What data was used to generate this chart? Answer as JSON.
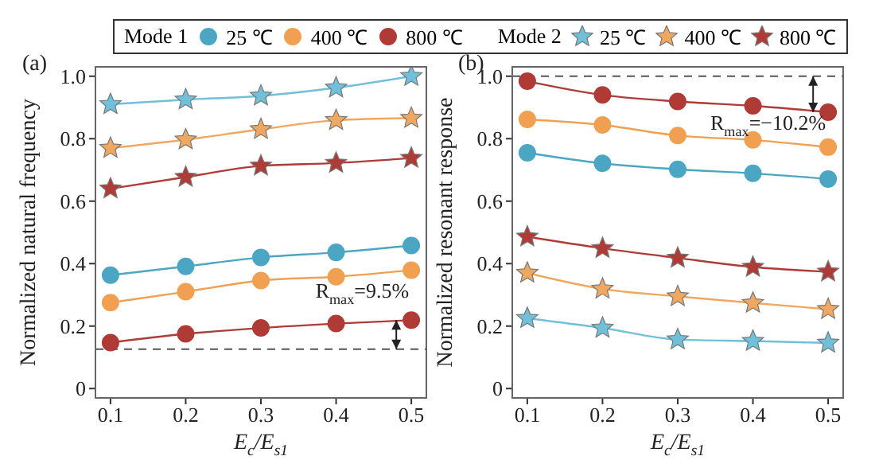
{
  "chart_data": [
    {
      "type": "line",
      "title": "(a)",
      "xlabel": "E$_{c}$/E$_{s1}$",
      "ylabel": "Normalized natural frequency",
      "legend": "top",
      "legend_title": "Mode 1",
      "marker": "circle",
      "xlim": [
        0.08,
        0.52
      ],
      "xticks": [
        0.1,
        0.2,
        0.3,
        0.4,
        0.5
      ],
      "ylim": [
        -0.03,
        1.03
      ],
      "yticks": [
        0,
        0.2,
        0.4,
        0.6,
        0.8,
        {
          "value": 1,
          "label": "1.0"
        }
      ],
      "x": [
        0.1,
        0.2,
        0.3,
        0.4,
        0.5
      ],
      "series": [
        {
          "name": "25 ℃",
          "color": "#4ba6c4",
          "values": [
            0.363,
            0.391,
            0.42,
            0.436,
            0.458
          ]
        },
        {
          "name": "400 ℃",
          "color": "#f0a050",
          "values": [
            0.275,
            0.31,
            0.346,
            0.358,
            0.379
          ]
        },
        {
          "name": "800 ℃",
          "color": "#b03a35",
          "values": [
            0.147,
            0.175,
            0.194,
            0.208,
            0.219
          ]
        },
        {
          "name": "25 ℃",
          "color": "#6fc0d8",
          "marker": "star",
          "values": [
            0.91,
            0.925,
            0.937,
            0.963,
            1.0
          ]
        },
        {
          "name": "400 ℃",
          "color": "#f0a860",
          "marker": "star",
          "values": [
            0.77,
            0.797,
            0.83,
            0.859,
            0.866
          ]
        },
        {
          "name": "800 ℃",
          "color": "#b03a35",
          "marker": "star",
          "values": [
            0.64,
            0.677,
            0.713,
            0.722,
            0.738
          ]
        }
      ],
      "ref_lines": [
        {
          "axis": "y",
          "value": 0.126,
          "line_style": "dashed",
          "color": "#555555"
        }
      ],
      "annotations": [
        "R$_{max}$=9.5%"
      ]
    },
    {
      "type": "line",
      "title": "(b)",
      "xlabel": "E$_{c}$/E$_{s1}$",
      "ylabel": "Normalized resonant response",
      "legend": "top",
      "legend_title": "Mode 2",
      "marker": "star",
      "xlim": [
        0.08,
        0.52
      ],
      "xticks": [
        0.1,
        0.2,
        0.3,
        0.4,
        0.5
      ],
      "ylim": [
        -0.03,
        1.03
      ],
      "yticks": [
        0,
        0.2,
        0.4,
        0.6,
        0.8,
        {
          "value": 1,
          "label": "1.0"
        }
      ],
      "x": [
        0.1,
        0.2,
        0.3,
        0.4,
        0.5
      ],
      "series": [
        {
          "color": "#4ba6c4",
          "marker": "circle",
          "values": [
            0.755,
            0.721,
            0.702,
            0.689,
            0.671
          ]
        },
        {
          "color": "#f0a050",
          "marker": "circle",
          "values": [
            0.862,
            0.844,
            0.81,
            0.796,
            0.773
          ]
        },
        {
          "color": "#b03a35",
          "marker": "circle",
          "values": [
            0.984,
            0.94,
            0.919,
            0.905,
            0.885
          ]
        },
        {
          "color": "#6fc0d8",
          "values": [
            0.225,
            0.194,
            0.157,
            0.152,
            0.146
          ]
        },
        {
          "color": "#f0a860",
          "values": [
            0.37,
            0.319,
            0.295,
            0.274,
            0.254
          ]
        },
        {
          "color": "#b03a35",
          "values": [
            0.486,
            0.449,
            0.418,
            0.389,
            0.374
          ]
        }
      ],
      "ref_lines": [
        {
          "axis": "y",
          "value": 1.0,
          "line_style": "dashed",
          "color": "#555555"
        }
      ],
      "annotations": [
        "R$_{max}$=−10.2%"
      ]
    }
  ]
}
